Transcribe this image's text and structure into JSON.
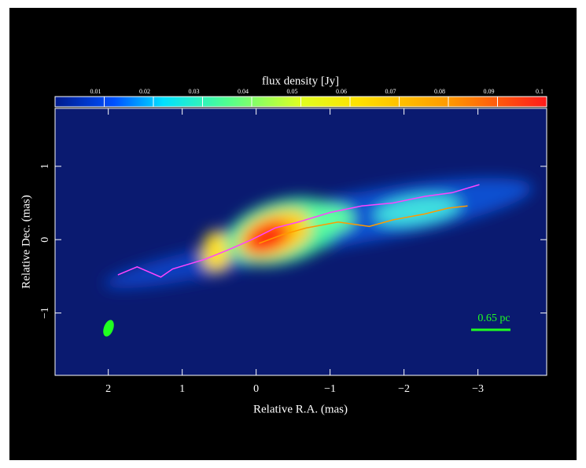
{
  "chart_data": {
    "type": "line",
    "title": "flux density [Jy]",
    "x_label": "Relative R.A. (mas)",
    "y_label": "Relative Dec. (mas)",
    "scale_bar_label": "0.65 pc",
    "xlim": [
      2.72,
      -3.93
    ],
    "ylim": [
      -1.85,
      1.79
    ],
    "xticks": [
      2,
      1,
      0,
      {
        "value": -1,
        "label": "−1"
      },
      {
        "value": -2,
        "label": "−2"
      },
      {
        "value": -3,
        "label": "−3"
      }
    ],
    "yticks": [
      {
        "value": -1,
        "label": "−1"
      },
      0,
      1
    ],
    "colorbar_lim": [
      0,
      0.1
    ],
    "colorbar_ticks": [
      0.01,
      0.02,
      0.03,
      0.04,
      0.05,
      0.06,
      0.07,
      0.08,
      0.09,
      0.1
    ],
    "series": [
      {
        "color": "#ff44ff",
        "x": [
          1.87,
          1.61,
          1.29,
          1.13,
          0.7,
          0.38,
          0.06,
          -0.26,
          -0.57,
          -1.0,
          -1.43,
          -1.85,
          -2.28,
          -2.65,
          -3.02
        ],
        "values": [
          -0.48,
          -0.37,
          -0.51,
          -0.4,
          -0.27,
          -0.14,
          0,
          0.16,
          0.24,
          0.37,
          0.46,
          0.5,
          0.59,
          0.64,
          0.75
        ]
      },
      {
        "color": "#ff9900",
        "x": [
          -0.04,
          -0.36,
          -0.68,
          -1.11,
          -1.53,
          -1.85,
          -2.28,
          -2.6,
          -2.86
        ],
        "values": [
          -0.05,
          0.07,
          0.16,
          0.24,
          0.18,
          0.27,
          0.35,
          0.43,
          0.46
        ]
      }
    ]
  }
}
